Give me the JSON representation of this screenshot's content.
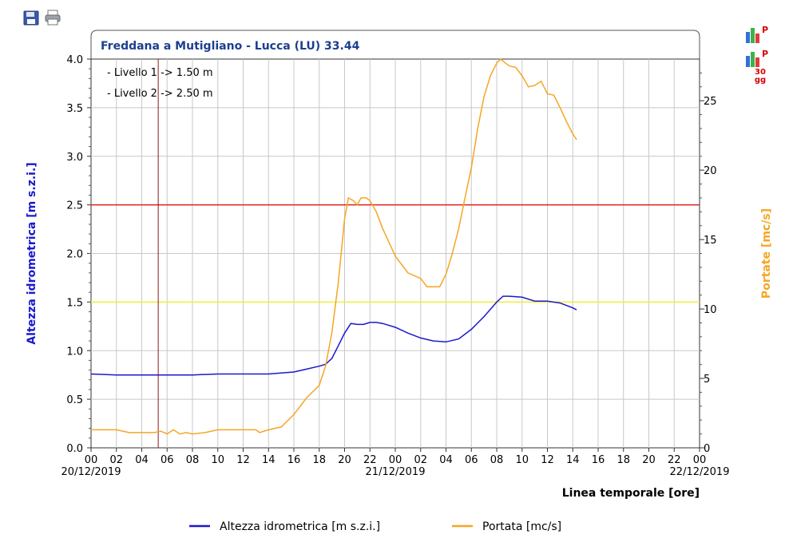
{
  "toolbar": {
    "save_icon": "floppy-disk-icon",
    "print_icon": "printer-icon",
    "right_icons": [
      {
        "icon": "bar-chart-p-icon",
        "caption": ""
      },
      {
        "icon": "bar-chart-p-30gg-icon",
        "caption": "30\ngg"
      }
    ]
  },
  "chart_data": {
    "type": "line",
    "title": "Freddana a Mutigliano - Lucca (LU) 33.44",
    "annotations": [
      "- Livello 1 -> 1.50 m",
      "- Livello 2 -> 2.50 m"
    ],
    "xlabel": "Linea temporale [ore]",
    "ylabel_left": "Altezza idrometrica [m s.z.i.]",
    "ylabel_right": "Portate [mc/s]",
    "x_tick_labels": [
      "00",
      "02",
      "04",
      "06",
      "08",
      "10",
      "12",
      "14",
      "16",
      "18",
      "20",
      "22",
      "00",
      "02",
      "04",
      "06",
      "08",
      "10",
      "12",
      "14",
      "16",
      "18",
      "20",
      "22",
      "00"
    ],
    "x_tick_hours": [
      0,
      2,
      4,
      6,
      8,
      10,
      12,
      14,
      16,
      18,
      20,
      22,
      24,
      26,
      28,
      30,
      32,
      34,
      36,
      38,
      40,
      42,
      44,
      46,
      48
    ],
    "x_date_labels": [
      {
        "hour": 0,
        "text": "20/12/2019"
      },
      {
        "hour": 24,
        "text": "21/12/2019"
      },
      {
        "hour": 48,
        "text": "22/12/2019"
      }
    ],
    "xlim": [
      0,
      48
    ],
    "ylim_left": [
      0,
      4.0
    ],
    "ylim_right": [
      0,
      28
    ],
    "y_ticks_left": [
      "0.0",
      "0.5",
      "1.0",
      "1.5",
      "2.0",
      "2.5",
      "3.0",
      "3.5",
      "4.0"
    ],
    "y_ticks_right": [
      "0",
      "5",
      "10",
      "15",
      "20",
      "25"
    ],
    "vertical_marker_hour": 5.3,
    "thresholds": [
      {
        "name": "Livello 1",
        "value": 1.5,
        "color": "#f0ef3a"
      },
      {
        "name": "Livello 2",
        "value": 2.5,
        "color": "#e02020"
      }
    ],
    "series": [
      {
        "name": "Altezza idrometrica [m s.z.i.]",
        "axis": "left",
        "color": "#1a1acc",
        "x": [
          0,
          2,
          4,
          6,
          8,
          10,
          12,
          14,
          16,
          17,
          18,
          18.5,
          19,
          19.5,
          20,
          20.5,
          21,
          21.5,
          22,
          22.5,
          23,
          24,
          25,
          26,
          27,
          28,
          29,
          30,
          31,
          32,
          32.5,
          33,
          34,
          35,
          36,
          37,
          38,
          38.3
        ],
        "y": [
          0.76,
          0.75,
          0.75,
          0.75,
          0.75,
          0.76,
          0.76,
          0.76,
          0.78,
          0.81,
          0.84,
          0.86,
          0.92,
          1.05,
          1.18,
          1.28,
          1.27,
          1.27,
          1.29,
          1.29,
          1.28,
          1.24,
          1.18,
          1.13,
          1.1,
          1.09,
          1.12,
          1.22,
          1.35,
          1.5,
          1.56,
          1.56,
          1.55,
          1.51,
          1.51,
          1.49,
          1.44,
          1.42
        ]
      },
      {
        "name": "Portata [mc/s]",
        "axis": "right",
        "color": "#f5a623",
        "x": [
          0,
          1,
          2,
          3,
          4,
          5,
          5.5,
          6,
          6.5,
          7,
          7.5,
          8,
          9,
          10,
          11,
          12,
          13,
          13.3,
          14,
          15,
          16,
          17,
          18,
          18.5,
          19,
          19.5,
          20,
          20.3,
          20.7,
          21,
          21.3,
          21.7,
          22,
          22.5,
          23,
          23.5,
          24,
          25,
          26,
          26.5,
          27,
          27.5,
          28,
          28.5,
          29,
          29.5,
          30,
          30.5,
          31,
          31.5,
          32,
          32.3,
          32.7,
          33,
          33.5,
          34,
          34.5,
          35,
          35.5,
          36,
          36.5,
          37,
          37.5,
          38,
          38.3
        ],
        "y": [
          1.3,
          1.3,
          1.3,
          1.1,
          1.1,
          1.1,
          1.2,
          1.0,
          1.3,
          1.0,
          1.1,
          1.0,
          1.1,
          1.3,
          1.3,
          1.3,
          1.3,
          1.1,
          1.3,
          1.5,
          2.4,
          3.6,
          4.5,
          5.9,
          8.3,
          11.9,
          16.5,
          18.0,
          17.8,
          17.5,
          18.0,
          18.0,
          17.8,
          17.0,
          15.8,
          14.8,
          13.8,
          12.6,
          12.2,
          11.6,
          11.6,
          11.6,
          12.5,
          14.0,
          15.8,
          18.0,
          20.2,
          23.0,
          25.3,
          26.8,
          27.7,
          28.0,
          27.7,
          27.5,
          27.4,
          26.8,
          26.0,
          26.1,
          26.4,
          25.5,
          25.4,
          24.5,
          23.5,
          22.6,
          22.2
        ]
      }
    ],
    "legend": [
      "Altezza idrometrica [m s.z.i.]",
      "Portata [mc/s]"
    ]
  }
}
